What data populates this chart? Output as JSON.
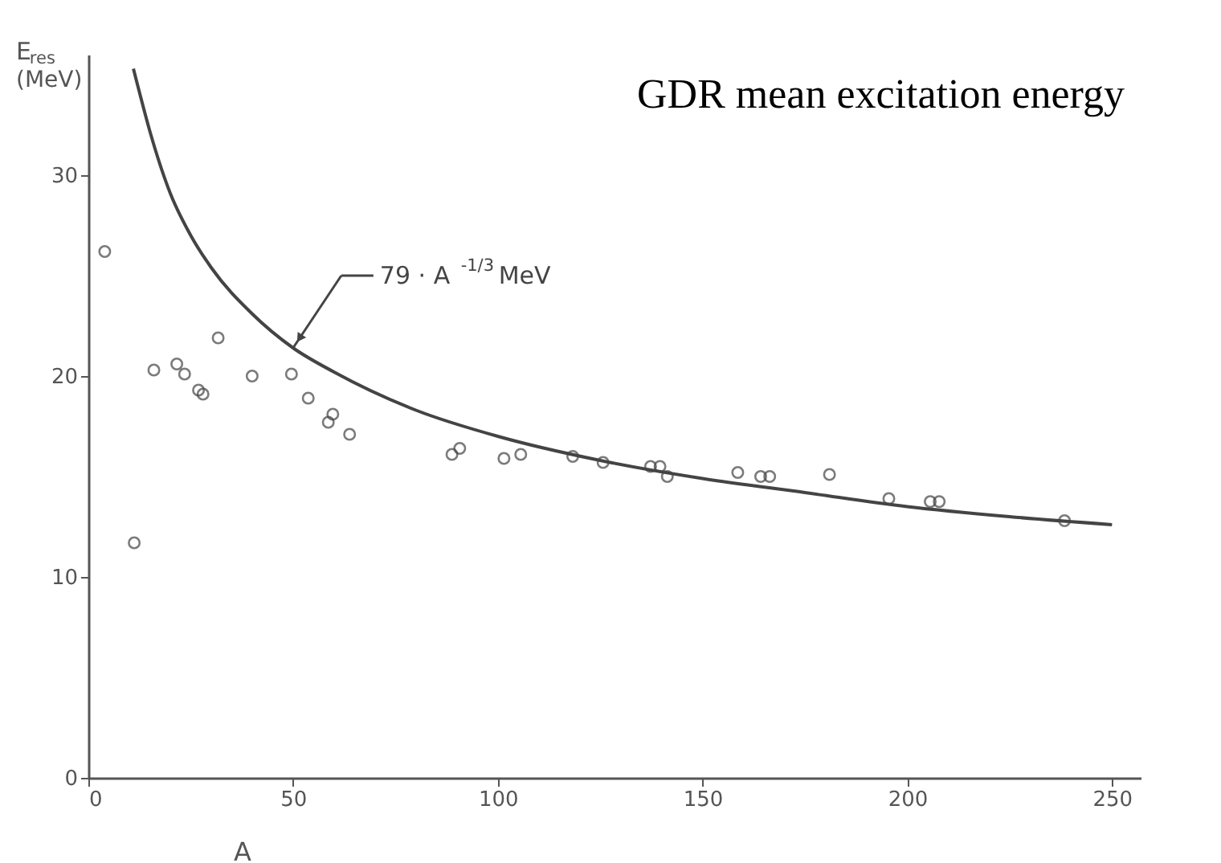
{
  "chart_data": {
    "type": "scatter",
    "title": "GDR mean excitation energy",
    "xlabel": "A",
    "ylabel": "E$_{res}$ (MeV)",
    "xlim": [
      0,
      257
    ],
    "ylim": [
      0,
      36
    ],
    "xticks": [
      0,
      50,
      100,
      150,
      200,
      250
    ],
    "yticks": [
      0,
      10,
      20,
      30
    ],
    "grid": false,
    "marker": "circle",
    "annotations": [
      "79 · A$^{-1/3}$ MeV"
    ],
    "series": [
      {
        "color": "#444444",
        "x": [
          4,
          11.2,
          16,
          21.6,
          23.5,
          26.9,
          28,
          31.7,
          40,
          49.6,
          53.7,
          58.6,
          59.7,
          63.8,
          88.8,
          90.7,
          101.5,
          105.6,
          118.3,
          125.7,
          137.3,
          139.6,
          141.4,
          158.6,
          164.2,
          166.4,
          181,
          195.5,
          205.6,
          207.8,
          238.4
        ],
        "values": [
          26.2,
          11.7,
          20.3,
          20.6,
          20.1,
          19.3,
          19.1,
          21.9,
          20.0,
          20.1,
          18.9,
          17.7,
          18.1,
          17.1,
          16.1,
          16.4,
          15.9,
          16.1,
          16.0,
          15.7,
          15.5,
          15.5,
          15.0,
          15.2,
          15.0,
          15.0,
          15.1,
          13.9,
          13.75,
          13.75,
          12.8
        ]
      },
      {
        "type": "line",
        "color": "#444444",
        "line_style": "solid",
        "marker": "none",
        "x": [
          11,
          12,
          15,
          20,
          25,
          30,
          40,
          50,
          60,
          80,
          100,
          125,
          150,
          175,
          200,
          225,
          250
        ],
        "values": [
          35.3,
          34.5,
          32.2,
          29.1,
          27.0,
          25.4,
          23.1,
          21.4,
          20.2,
          18.3,
          17.0,
          15.8,
          14.9,
          14.2,
          13.5,
          13.0,
          12.6
        ]
      }
    ]
  }
}
